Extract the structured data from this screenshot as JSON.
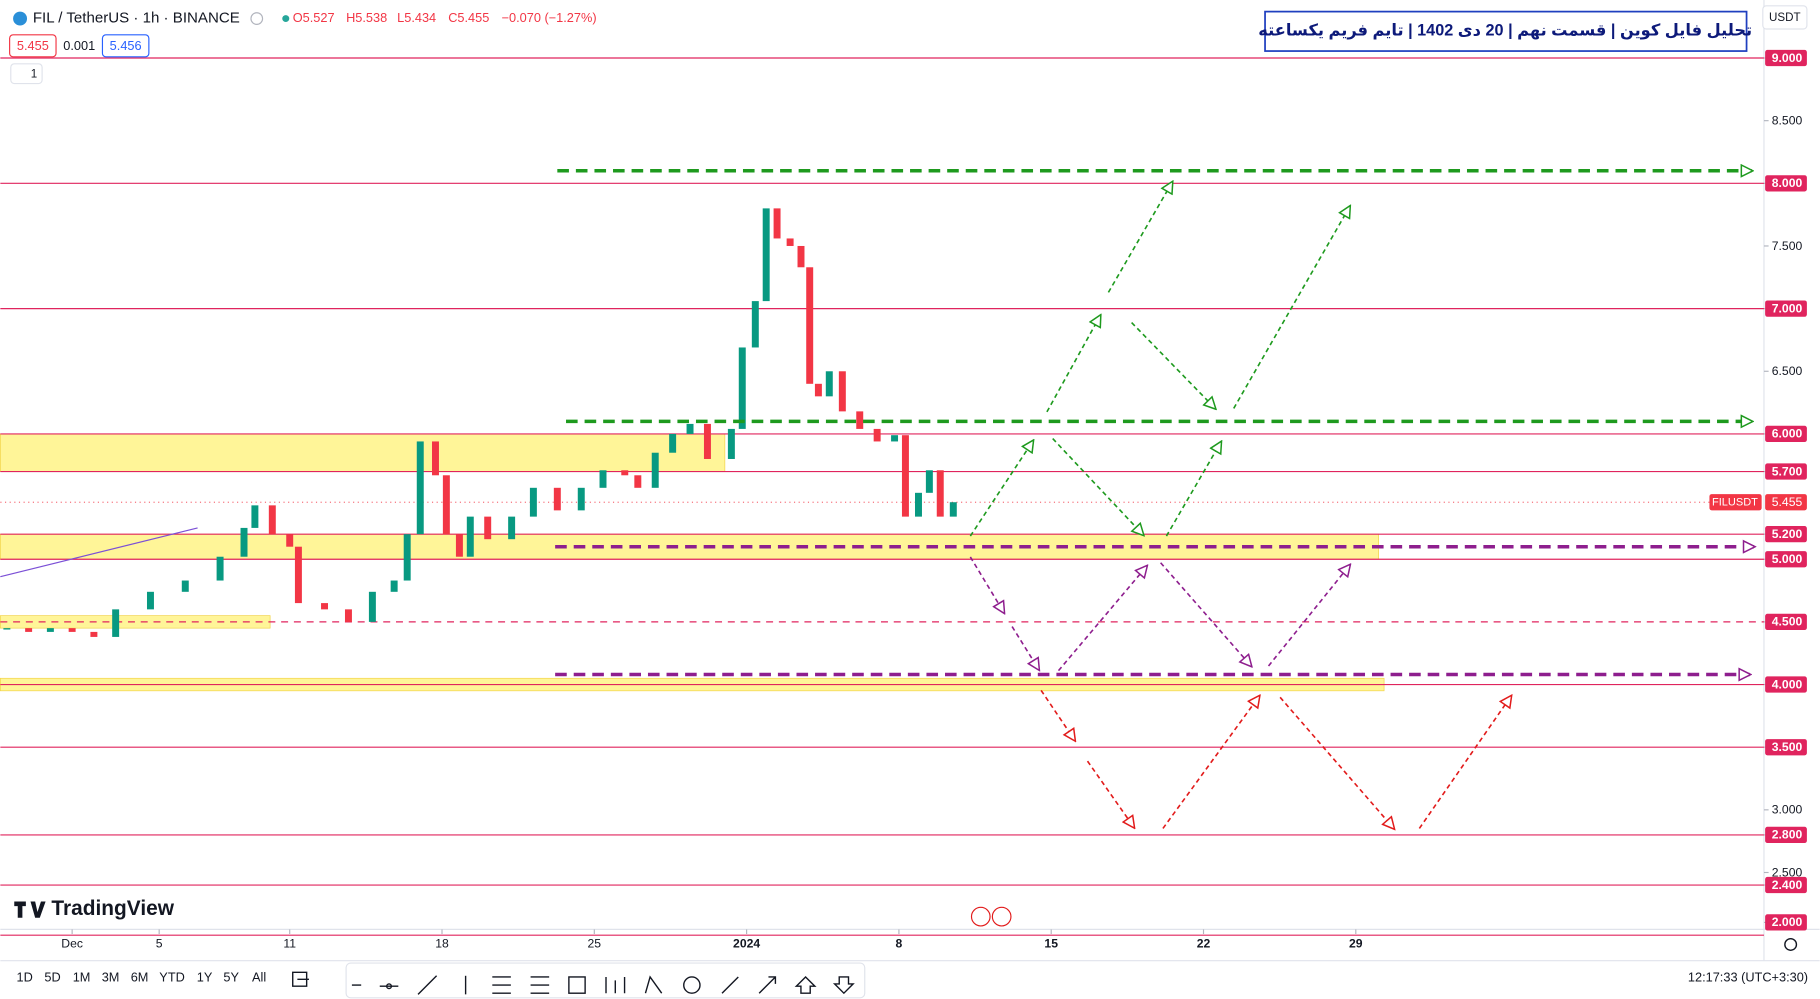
{
  "header": {
    "symbol": "FIL / TetherUS · 1h · BINANCE",
    "ohlc": [
      "O5.527",
      "H5.538",
      "L5.434",
      "C5.455",
      "−0.070 (−1.27%)"
    ],
    "bid": "5.455",
    "spread": "0.001",
    "ask": "5.456",
    "indicators": "1",
    "title": "تحلیل فایل کوین | قسمت نهم | 20 دی 1402 | تایم فریم یکساعته",
    "currency": "USDT",
    "logo": "TradingView"
  },
  "chart_data": {
    "type": "candlestick",
    "xlim": [
      -2.3,
      78.76
    ],
    "ylim": [
      2.046,
      9.463
    ],
    "x": [
      -2,
      -1,
      0,
      1,
      2,
      3,
      4.6,
      6.2,
      7.8,
      8.9,
      9.4,
      10.2,
      11,
      11.4,
      12.6,
      13.7,
      14.8,
      15.8,
      16.4,
      17,
      17.7,
      18.2,
      18.8,
      19.3,
      20.1,
      21.2,
      22.2,
      23.3,
      24.4,
      25.4,
      26.4,
      27,
      27.8,
      28.6,
      29.4,
      30.2,
      31.3,
      31.8,
      32.4,
      32.9,
      33.4,
      34,
      34.5,
      34.9,
      35.3,
      35.8,
      36.4,
      37.2,
      38,
      38.8,
      39.3,
      39.9,
      40.4,
      40.9,
      41.5
    ],
    "close": [
      4.45,
      4.42,
      4.45,
      4.42,
      4.38,
      4.6,
      4.74,
      4.83,
      5.02,
      5.25,
      5.43,
      5.2,
      5.1,
      4.65,
      4.6,
      4.5,
      4.74,
      4.83,
      5.2,
      5.94,
      5.67,
      5.2,
      5.02,
      5.34,
      5.16,
      5.34,
      5.57,
      5.39,
      5.57,
      5.71,
      5.67,
      5.57,
      5.85,
      6.0,
      6.08,
      5.8,
      6.04,
      6.69,
      7.06,
      7.8,
      7.56,
      7.5,
      7.33,
      6.4,
      6.3,
      6.5,
      6.18,
      6.04,
      5.94,
      5.99,
      5.34,
      5.53,
      5.71,
      5.34,
      5.455
    ],
    "up_color": "#089981",
    "down_color": "#f23645",
    "xticks": [
      {
        "value": 1,
        "label": "Dec"
      },
      5,
      11,
      18,
      25,
      {
        "value": 32,
        "label": "2024"
      },
      {
        "value": 39,
        "label": "8"
      },
      {
        "value": 46,
        "label": "15"
      },
      {
        "value": 53,
        "label": "22"
      },
      {
        "value": 60,
        "label": "29"
      }
    ],
    "yticks": [
      {
        "value": 9,
        "label": "9.000"
      },
      {
        "value": 8.5,
        "label": "8.500"
      },
      {
        "value": 8,
        "label": "8.000"
      },
      {
        "value": 7.5,
        "label": "7.500"
      },
      {
        "value": 7,
        "label": "7.000"
      },
      {
        "value": 6.5,
        "label": "6.500"
      },
      {
        "value": 6,
        "label": "6.000"
      },
      {
        "value": 5.7,
        "label": "5.700"
      },
      {
        "value": 5.2,
        "label": "5.200"
      },
      {
        "value": 5,
        "label": "5.000"
      },
      {
        "value": 4.5,
        "label": "4.500"
      },
      {
        "value": 4,
        "label": "4.000"
      },
      {
        "value": 3.5,
        "label": "3.500"
      },
      {
        "value": 3,
        "label": "3.000"
      },
      {
        "value": 2.8,
        "label": "2.800"
      },
      {
        "value": 2.5,
        "label": "2.500"
      },
      {
        "value": 2.4,
        "label": "2.400"
      },
      {
        "value": 2,
        "label": "2.000"
      }
    ],
    "levels": [
      9,
      8,
      7,
      6,
      5.7,
      5.2,
      5,
      4.5,
      4,
      3.5,
      2.8,
      2.4,
      2
    ],
    "dashed_levels": [
      4.5
    ],
    "level_color": "#e0245e",
    "zones": [
      {
        "y": [
          5.7,
          6.0
        ],
        "x": [
          -2.3,
          31.0
        ]
      },
      {
        "y": [
          5.0,
          5.2
        ],
        "x": [
          -2.3,
          61.05
        ]
      },
      {
        "y": [
          4.45,
          4.55
        ],
        "x": [
          -2.3,
          10.1
        ]
      },
      {
        "y": [
          3.95,
          4.05
        ],
        "x": [
          -2.3,
          61.3
        ]
      }
    ],
    "zone_color": "#fff176",
    "trend_lines": [
      {
        "y": 8.1,
        "x": [
          23.3,
          78.2
        ],
        "color": "#1e9a1e"
      },
      {
        "y": 6.1,
        "x": [
          23.7,
          78.2
        ],
        "color": "#1e9a1e"
      },
      {
        "y": 5.1,
        "x": [
          23.2,
          78.3
        ],
        "color": "#8e1e8e"
      },
      {
        "y": 4.08,
        "x": [
          23.2,
          78.1
        ],
        "color": "#8e1e8e"
      }
    ],
    "last_price_name": "FILUSDT",
    "last_price": 5.455
  },
  "toolbar": {
    "timeframes": [
      "1D",
      "5D",
      "1M",
      "3M",
      "6M",
      "YTD",
      "1Y",
      "5Y",
      "All"
    ],
    "clock": "12:17:33 (UTC+3:30)"
  }
}
